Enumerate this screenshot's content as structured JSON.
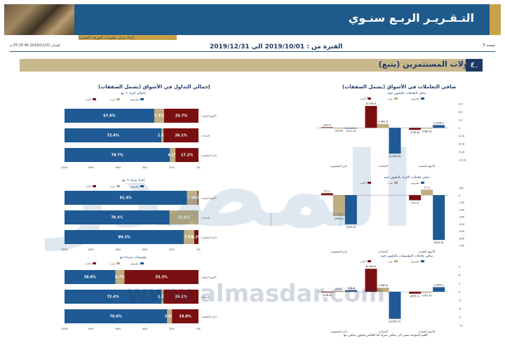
{
  "header": {
    "title": "التـقـريـر الربـع سنـوي",
    "logo_text": "إعداد مركز معلومات البورصة المصرية"
  },
  "meta": {
    "issued": "إصدار 2019/12/31 07:25:45 م",
    "period": "الفترة من : 2019/10/01 الى 2019/12/31",
    "page": "صفحة 5"
  },
  "section": {
    "number": "٤.",
    "title": "تداولات المستثمرين (يتبع)"
  },
  "left_title": "صافي التعاملات في الأسواق (يشمل الصفقات)",
  "right_title": "إجمالي التداول في الأسواق (يشمل الصفقات)",
  "watermark": "www.almasdar.com",
  "footnote": "القيم الموجبة تشير الى صافي شراء أما العكس فيكون صافي بيع",
  "chart_data": [
    {
      "type": "bar",
      "title": "صافي التعاملات بالمليون جنيه",
      "categories": [
        "الأسهم المقيدة",
        "السندات",
        "خارج المقصورة"
      ],
      "legend": [
        "مصريون",
        "عرب",
        "أجانب"
      ],
      "series": [
        {
          "name": "مصريون",
          "values": [
            1026.2,
            -9658.9,
            -211.0
          ]
        },
        {
          "name": "عرب",
          "values": [
            -280.5,
            1462.9,
            -20.6
          ]
        },
        {
          "name": "أجانب",
          "values": [
            -745.6,
            8196.0,
            231.5
          ]
        }
      ],
      "value_labels": [
        [
          "1,026.2",
          "(9,658.9)",
          "(211.0)"
        ],
        [
          "(280.5)",
          "1,462.9",
          "(20.6)"
        ],
        [
          "(745.6)",
          "8,196.0",
          "231.5"
        ]
      ],
      "yticks": [
        "9.0",
        "6.0",
        "3.0",
        "0",
        "(3.0)",
        "(6.0)",
        "(9.0)",
        "(12.0)"
      ]
    },
    {
      "type": "bar",
      "title": "صافي تعاملات الأفراد بالمليون جنيه",
      "categories": [
        "الأسهم المقيدة",
        "السندات",
        "خارج المقصورة"
      ],
      "legend": [
        "مصريون",
        "عرب",
        "أجانب"
      ],
      "series": [
        {
          "name": "مصريون",
          "values": [
            -623.9,
            0,
            -405.8
          ]
        },
        {
          "name": "عرب",
          "values": [
            77.1,
            0,
            -290.5
          ]
        },
        {
          "name": "أجانب",
          "values": [
            -70.7,
            0,
            27.1
          ]
        }
      ],
      "value_labels": [
        [
          "(623.9)",
          "",
          "(405.8)"
        ],
        [
          "77.1",
          "",
          "(290.5)"
        ],
        [
          "(70.7)",
          "",
          "27.1"
        ]
      ],
      "yticks": [
        "100",
        "0",
        "-100",
        "-200",
        "-300",
        "-400",
        "-500",
        "-600",
        "-700"
      ]
    },
    {
      "type": "bar",
      "title": "صافي تعاملات المؤسسات بالمليون جنيه",
      "categories": [
        "الأسهم المقيدة",
        "السندات",
        "خارج المقصورة"
      ],
      "legend": [
        "مصريون",
        "عرب",
        "أجانب"
      ],
      "series": [
        {
          "name": "مصريون",
          "values": [
            1650.1,
            -9650.7,
            536.8
          ]
        },
        {
          "name": "عرب",
          "values": [
            -357.6,
            1460.6,
            270.2
          ]
        },
        {
          "name": "أجانب",
          "values": [
            -675.1,
            8196.0,
            -236.6
          ]
        }
      ],
      "value_labels": [
        [
          "1,650.1",
          "(9,650.7)",
          "536.8"
        ],
        [
          "(357.6)",
          "1,460.6",
          "270.2"
        ],
        [
          "(675.1)",
          "8,196.0",
          "(236.6)"
        ]
      ],
      "yticks": [
        "9",
        "6",
        "3",
        "0",
        "-3",
        "-6",
        "-9",
        "-12"
      ]
    },
    {
      "type": "bar",
      "orientation": "horizontal-stacked",
      "title": "إجمالي تداول أفراد + مؤسسات",
      "subcharts": [
        {
          "title": "إجمالي افراد + بيع",
          "categories": [
            "الأسهم المقيدة",
            "السندات",
            "خارج المقصورة"
          ],
          "series": [
            {
              "name": "مصريون",
              "values": [
                67.0,
                72.4,
                78.7
              ]
            },
            {
              "name": "عرب",
              "values": [
                7.3,
                1.5,
                4.1
              ]
            },
            {
              "name": "أجانب",
              "values": [
                25.7,
                26.1,
                17.2
              ]
            }
          ]
        },
        {
          "title": "افراد شراء + بيع",
          "categories": [
            "الأسهم المقيدة",
            "السندات",
            "خارج المقصورة"
          ],
          "series": [
            {
              "name": "مصريون",
              "values": [
                91.4,
                78.4,
                89.2
              ]
            },
            {
              "name": "عرب",
              "values": [
                7.9,
                21.6,
                7.6
              ]
            },
            {
              "name": "أجانب",
              "values": [
                0.7,
                0,
                3.2
              ]
            }
          ]
        },
        {
          "title": "مؤسسات شراء+بيع",
          "categories": [
            "الأسهم المقيدة",
            "السندات",
            "خارج المقصورة"
          ],
          "series": [
            {
              "name": "مصريون",
              "values": [
                38.0,
                72.4,
                76.6
              ]
            },
            {
              "name": "عرب",
              "values": [
                6.7,
                1.5,
                3.6
              ]
            },
            {
              "name": "أجانب",
              "values": [
                55.3,
                26.1,
                19.8
              ]
            }
          ]
        }
      ],
      "xticks": [
        "100%",
        "80%",
        "60%",
        "40%",
        "20%",
        "0%"
      ]
    }
  ],
  "colors": {
    "egyptians": "#1f5a94",
    "arabs": "#c0ad80",
    "foreigners": "#7a0f12",
    "navy": "#1f3864",
    "gold": "#c8a24a"
  }
}
